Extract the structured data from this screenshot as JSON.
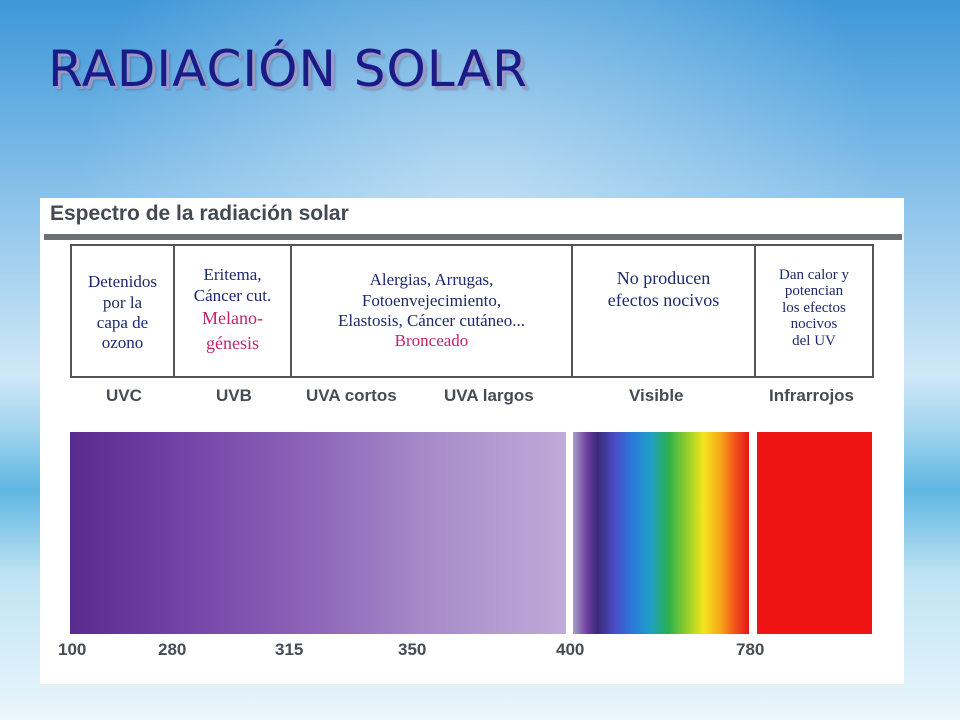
{
  "slide_title": "RADIACIÓN SOLAR",
  "figure": {
    "title": "Espectro de la radiación solar",
    "effects": [
      {
        "lines": [
          "Detenidos",
          "por la",
          "capa de",
          "ozono"
        ]
      },
      {
        "lines": [
          "Eritema,",
          "Cáncer cut."
        ],
        "highlight": [
          "Melano-",
          "génesis"
        ]
      },
      {
        "lines": [
          "Alergias, Arrugas,",
          "Fotoenvejecimiento,",
          "Elastosis, Cáncer cutáneo..."
        ],
        "highlight": [
          "Bronceado"
        ]
      },
      {
        "lines": [
          "No producen",
          "efectos nocivos"
        ]
      },
      {
        "lines": [
          "Dan calor y",
          "potencian",
          "los efectos",
          "nocivos",
          "del UV"
        ]
      }
    ],
    "bands": [
      "UVC",
      "UVB",
      "UVA cortos",
      "UVA largos",
      "Visible",
      "Infrarrojos"
    ],
    "wavelength_ticks": [
      "100",
      "280",
      "315",
      "350",
      "400",
      "780"
    ],
    "colors": {
      "title": "#1b1b88",
      "effects_text": "#1e2a6e",
      "highlight_text": "#c2256d",
      "uv_start": "#5a2a8e",
      "uv_end": "#c0aad8",
      "infrared": "#ee1414"
    }
  }
}
